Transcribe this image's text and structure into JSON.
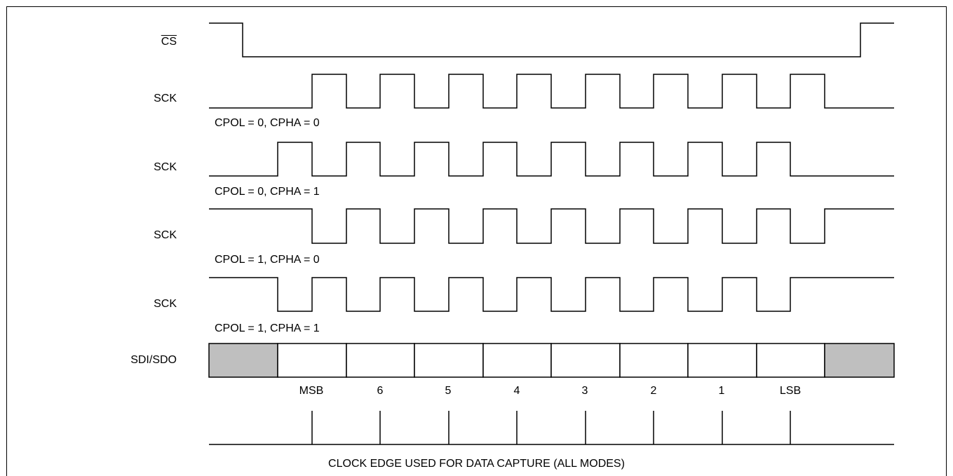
{
  "signals": {
    "cs": "CS",
    "sck": "SCK",
    "data": "SDI/SDO"
  },
  "modes": [
    {
      "label": "CPOL = 0, CPHA = 0",
      "cpol": 0,
      "cpha": 0
    },
    {
      "label": "CPOL = 0, CPHA = 1",
      "cpol": 0,
      "cpha": 1
    },
    {
      "label": "CPOL = 1, CPHA = 0",
      "cpol": 1,
      "cpha": 0
    },
    {
      "label": "CPOL = 1, CPHA = 1",
      "cpol": 1,
      "cpha": 1
    }
  ],
  "bits": [
    "MSB",
    "6",
    "5",
    "4",
    "3",
    "2",
    "1",
    "LSB"
  ],
  "capture_label": "CLOCK EDGE USED FOR DATA CAPTURE (ALL MODES)",
  "colors": {
    "line": "#000000",
    "idle_fill": "#bfbfbf"
  }
}
